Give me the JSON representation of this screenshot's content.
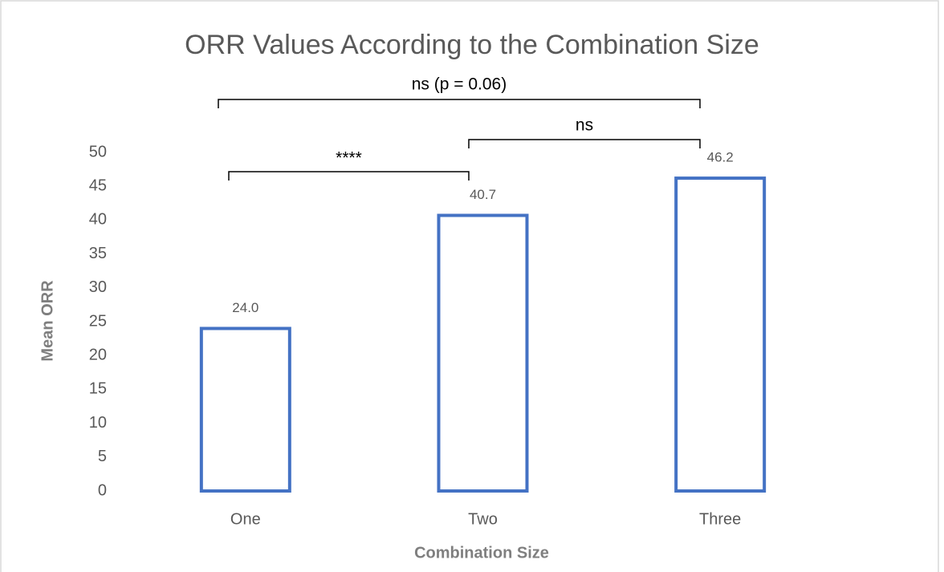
{
  "chart_data": {
    "type": "bar",
    "title": "ORR Values According to the Combination Size",
    "xlabel": "Combination Size",
    "ylabel": "Mean ORR",
    "categories": [
      "One",
      "Two",
      "Three"
    ],
    "values": [
      24,
      40.7,
      46.2
    ],
    "value_labels": [
      "24.0",
      "40.7",
      "46.2"
    ],
    "color": "#4472c4",
    "ylim": [
      0,
      50
    ],
    "yticks": [
      0,
      5,
      10,
      15,
      20,
      25,
      30,
      35,
      40,
      45,
      50
    ],
    "grid": false,
    "annotations": [
      "****",
      "ns",
      "ns (p = 0.06)"
    ]
  }
}
